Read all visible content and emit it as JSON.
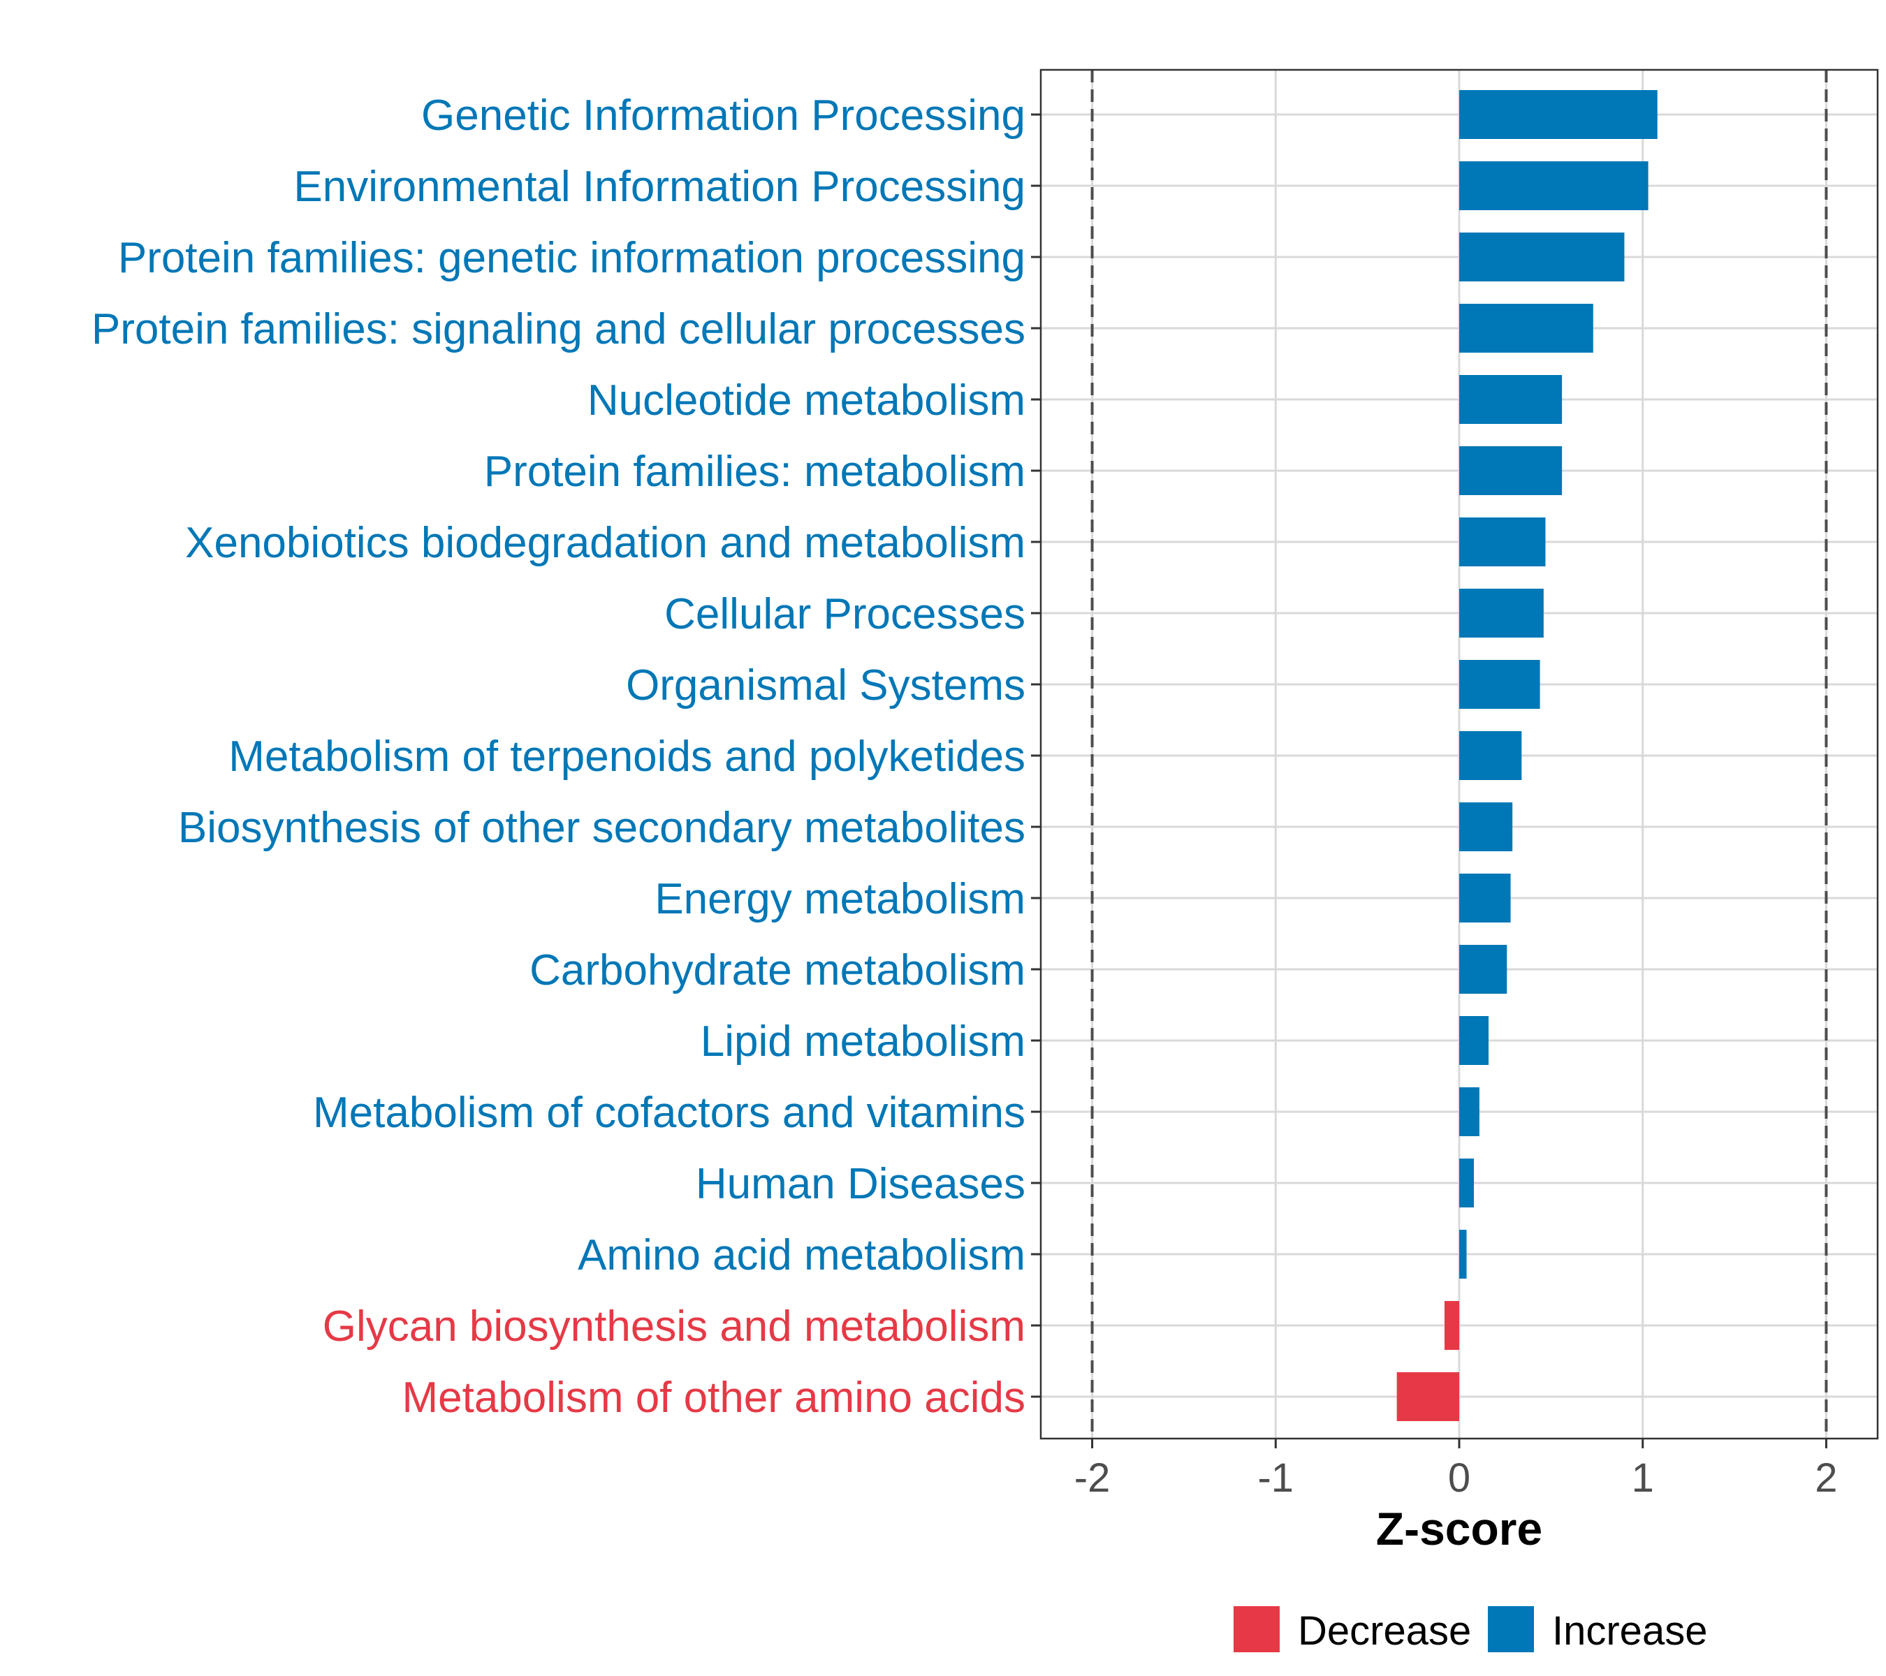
{
  "chart_data": {
    "type": "bar",
    "orientation": "horizontal",
    "title": "",
    "xlabel": "Z-score",
    "ylabel": "",
    "xlim": [
      -2.28,
      2.28
    ],
    "xticks": [
      -2,
      -1,
      0,
      1,
      2
    ],
    "xtick_labels": [
      "-2",
      "-1",
      "0",
      "1",
      "2"
    ],
    "threshold_lines": [
      -2,
      2
    ],
    "grid": true,
    "categories": [
      "Genetic Information Processing",
      "Environmental Information Processing",
      "Protein families: genetic information processing",
      "Protein families: signaling and cellular processes",
      "Nucleotide metabolism",
      "Protein families: metabolism",
      "Xenobiotics biodegradation and metabolism",
      "Cellular Processes",
      "Organismal Systems",
      "Metabolism of terpenoids and polyketides",
      "Biosynthesis of other secondary metabolites",
      "Energy metabolism",
      "Carbohydrate metabolism",
      "Lipid metabolism",
      "Metabolism of cofactors and vitamins",
      "Human Diseases",
      "Amino acid metabolism",
      "Glycan biosynthesis and metabolism",
      "Metabolism of other amino acids"
    ],
    "values": [
      1.08,
      1.03,
      0.9,
      0.73,
      0.56,
      0.56,
      0.47,
      0.46,
      0.44,
      0.34,
      0.29,
      0.28,
      0.26,
      0.16,
      0.11,
      0.08,
      0.04,
      -0.08,
      -0.34
    ],
    "groups": [
      "Increase",
      "Increase",
      "Increase",
      "Increase",
      "Increase",
      "Increase",
      "Increase",
      "Increase",
      "Increase",
      "Increase",
      "Increase",
      "Increase",
      "Increase",
      "Increase",
      "Increase",
      "Increase",
      "Increase",
      "Decrease",
      "Decrease"
    ],
    "legend": {
      "position": "bottom",
      "entries": [
        {
          "label": "Decrease",
          "color": "#e63946"
        },
        {
          "label": "Increase",
          "color": "#0077b6"
        }
      ]
    },
    "colors": {
      "Increase": "#0077b6",
      "Decrease": "#e63946",
      "grid": "#d9d9d9",
      "threshold": "#4d4d4d",
      "border": "#333333"
    }
  }
}
